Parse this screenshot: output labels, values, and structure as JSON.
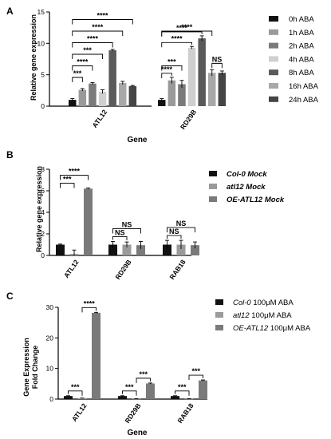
{
  "chart_data": [
    {
      "panel": "A",
      "type": "bar",
      "categories": [
        "ATL12",
        "RD29B"
      ],
      "series": [
        {
          "name": "0h ABA",
          "color": "#111111",
          "values": [
            1.0,
            1.0
          ],
          "err": [
            0.2,
            0.2
          ]
        },
        {
          "name": "1h ABA",
          "color": "#9a9a9a",
          "values": [
            2.6,
            4.1
          ],
          "err": [
            0.2,
            0.5
          ]
        },
        {
          "name": "2h ABA",
          "color": "#7a7a7a",
          "values": [
            3.6,
            3.5
          ],
          "err": [
            0.15,
            0.6
          ]
        },
        {
          "name": "4h ABA",
          "color": "#cfcfcf",
          "values": [
            2.3,
            9.3
          ],
          "err": [
            0.3,
            0.2
          ]
        },
        {
          "name": "8h ABA",
          "color": "#5a5a5a",
          "values": [
            8.9,
            10.8
          ],
          "err": [
            0.15,
            0.4
          ]
        },
        {
          "name": "16h ABA",
          "color": "#a8a8a8",
          "values": [
            3.7,
            5.3
          ],
          "err": [
            0.25,
            0.5
          ]
        },
        {
          "name": "24h ABA",
          "color": "#444444",
          "values": [
            3.2,
            5.3
          ],
          "err": [
            0.1,
            0.3
          ]
        }
      ],
      "xlabel": "Gene",
      "ylabel": "Relative gene expression",
      "ylim": [
        0,
        15
      ],
      "yticks": [
        "0",
        "5",
        "10",
        "15"
      ],
      "significance": [
        {
          "category": 0,
          "from": 0,
          "to": 1,
          "label": "***"
        },
        {
          "category": 0,
          "from": 0,
          "to": 2,
          "label": "****"
        },
        {
          "category": 0,
          "from": 0,
          "to": 3,
          "label": "***"
        },
        {
          "category": 0,
          "from": 0,
          "to": 4,
          "label": "****"
        },
        {
          "category": 0,
          "from": 0,
          "to": 5,
          "label": "****"
        },
        {
          "category": 0,
          "from": 0,
          "to": 6,
          "label": "****"
        },
        {
          "category": 1,
          "from": 0,
          "to": 1,
          "label": "****"
        },
        {
          "category": 1,
          "from": 0,
          "to": 2,
          "label": "***"
        },
        {
          "category": 1,
          "from": 0,
          "to": 3,
          "label": "****"
        },
        {
          "category": 1,
          "from": 0,
          "to": 4,
          "label": "****"
        },
        {
          "category": 1,
          "from": 0,
          "to": 5,
          "label": "****"
        },
        {
          "category": 1,
          "from": 5,
          "to": 6,
          "label": "NS"
        }
      ],
      "legend_position": "right"
    },
    {
      "panel": "B",
      "type": "bar",
      "categories": [
        "ATL12",
        "RD29B",
        "RAB18"
      ],
      "series": [
        {
          "name": "Col-0 Mock",
          "color": "#111111",
          "values": [
            1.0,
            1.0,
            1.0
          ],
          "err": [
            0.05,
            0.3,
            0.4
          ]
        },
        {
          "name": "atl12 Mock",
          "color": "#9a9a9a",
          "values": [
            0.15,
            1.0,
            1.0
          ],
          "err": [
            0.35,
            0.25,
            0.4
          ]
        },
        {
          "name": "OE-ATL12 Mock",
          "color": "#7a7a7a",
          "values": [
            6.2,
            0.95,
            0.95
          ],
          "err": [
            0.05,
            0.35,
            0.3
          ]
        }
      ],
      "ylabel": "Relative gene expression",
      "ylim": [
        0,
        8
      ],
      "yticks": [
        "0",
        "2",
        "4",
        "6",
        "8"
      ],
      "significance": [
        {
          "category": 0,
          "from": 0,
          "to": 1,
          "label": "***"
        },
        {
          "category": 0,
          "from": 0,
          "to": 2,
          "label": "****"
        },
        {
          "category": 1,
          "from": 0,
          "to": 1,
          "label": "NS"
        },
        {
          "category": 1,
          "from": 0,
          "to": 2,
          "label": "NS"
        },
        {
          "category": 2,
          "from": 0,
          "to": 1,
          "label": "NS"
        },
        {
          "category": 2,
          "from": 0,
          "to": 2,
          "label": "NS"
        }
      ],
      "legend_position": "right"
    },
    {
      "panel": "C",
      "type": "bar",
      "categories": [
        "ATL12",
        "RD29B",
        "RAB18"
      ],
      "series": [
        {
          "name": "Col-0 100μM ABA",
          "color": "#111111",
          "values": [
            1.0,
            1.0,
            1.0
          ],
          "err": [
            0.1,
            0.1,
            0.1
          ]
        },
        {
          "name": "atl12 100μM ABA",
          "color": "#9a9a9a",
          "values": [
            0.3,
            0.1,
            0.1
          ],
          "err": [
            0.05,
            0.05,
            0.05
          ]
        },
        {
          "name": "OE-ATL12 100μM ABA",
          "color": "#7a7a7a",
          "values": [
            28.2,
            5.1,
            6.1
          ],
          "err": [
            0.15,
            0.15,
            0.15
          ]
        }
      ],
      "xlabel": "Gene",
      "ylabel": "Gene Expression Fold Change",
      "ylim": [
        0,
        30
      ],
      "yticks": [
        "0",
        "10",
        "20",
        "30"
      ],
      "significance": [
        {
          "category": 0,
          "from": 0,
          "to": 1,
          "label": "***"
        },
        {
          "category": 0,
          "from": 1,
          "to": 2,
          "label": "****"
        },
        {
          "category": 1,
          "from": 0,
          "to": 1,
          "label": "***"
        },
        {
          "category": 1,
          "from": 1,
          "to": 2,
          "label": "***"
        },
        {
          "category": 2,
          "from": 0,
          "to": 1,
          "label": "***"
        },
        {
          "category": 2,
          "from": 1,
          "to": 2,
          "label": "***"
        }
      ],
      "legend_position": "right"
    }
  ],
  "labels": {
    "panel_a": "A",
    "panel_b": "B",
    "panel_c": "C",
    "a_ylabel": "Relative gene expression",
    "a_xtitle": "Gene",
    "b_ylabel": "Relative gene expression",
    "c_ylabel_line1": "Gene Expression",
    "c_ylabel_line2": "Fold Change",
    "c_xtitle": "Gene"
  },
  "legend_b": [
    {
      "italic": "Col-0 Mock",
      "rest": ""
    },
    {
      "italic": "atl12 Mock",
      "rest": ""
    },
    {
      "italic": "OE-ATL12 Mock",
      "rest": ""
    }
  ],
  "legend_c": [
    {
      "italic": "Col-0",
      "rest": " 100μM ABA"
    },
    {
      "italic": "atl12",
      "rest": " 100μM ABA"
    },
    {
      "italic": "OE-ATL12",
      "rest": " 100μM ABA"
    }
  ]
}
